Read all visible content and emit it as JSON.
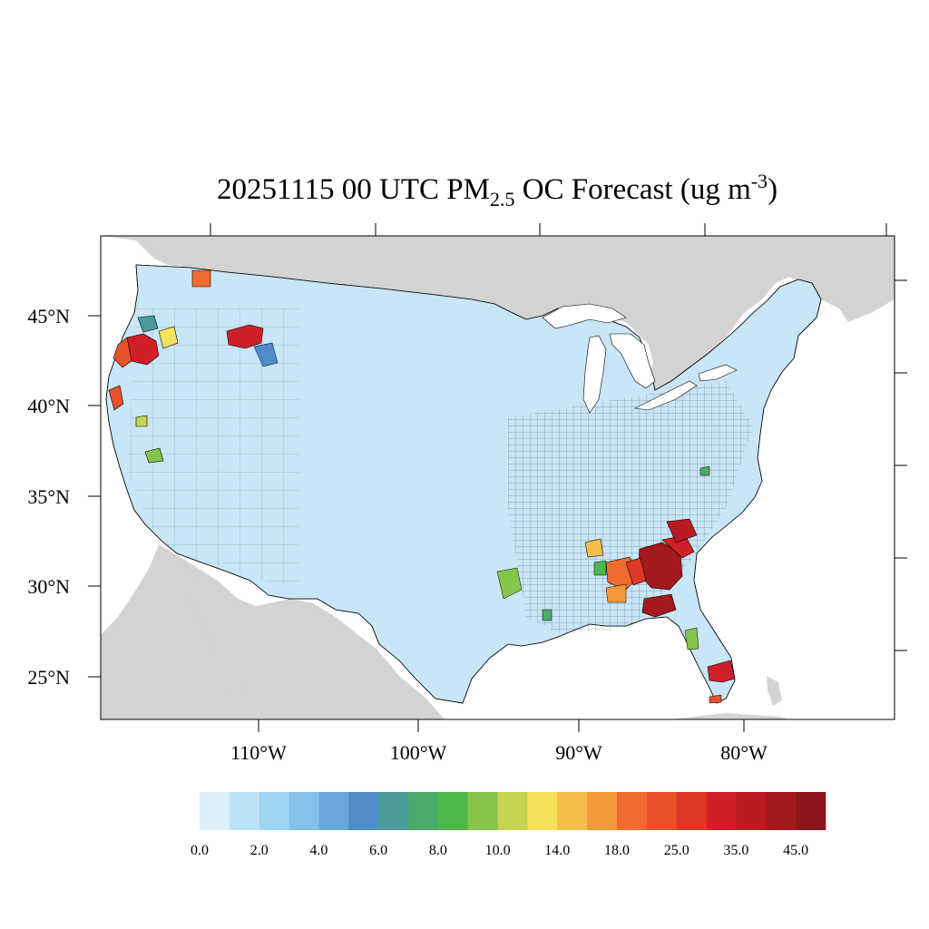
{
  "title": {
    "main": "20251115 00 UTC PM",
    "subscript": "2.5",
    "after_sub": " OC Forecast (ug m",
    "superscript": "-3",
    "close": ")"
  },
  "map": {
    "region": "Contiguous United States",
    "land_color": "#d3d3d3",
    "water_color": "#ffffff",
    "county_border_color": "#000000",
    "lat_labels": [
      "45°N",
      "40°N",
      "35°N",
      "30°N",
      "25°N"
    ],
    "lon_labels": [
      "110°W",
      "100°W",
      "90°W",
      "80°W"
    ],
    "hotspots": [
      {
        "area": "Oregon / northern California",
        "bin": "35.0"
      },
      {
        "area": "central Idaho / western Montana",
        "bin": "35.0"
      },
      {
        "area": "Georgia / South Carolina",
        "bin": "45.0"
      },
      {
        "area": "southern Alabama / Florida panhandle",
        "bin": "25.0"
      },
      {
        "area": "southern Florida",
        "bin": "35.0"
      },
      {
        "area": "eastern Texas / Louisiana",
        "bin": "8.0"
      }
    ]
  },
  "colorbar": {
    "colors": [
      "#dbf0fb",
      "#bde3f6",
      "#9dd5f3",
      "#84c0e8",
      "#6aa8dc",
      "#4f8cc9",
      "#4a9a9a",
      "#4caa6a",
      "#4cb84a",
      "#86c44c",
      "#c3d552",
      "#f5e15a",
      "#f6bd4a",
      "#f5983c",
      "#f06c2e",
      "#e8502a",
      "#de3726",
      "#d01f27",
      "#b81b22",
      "#a3191e",
      "#8b151b"
    ],
    "tick_labels": [
      "0.0",
      "2.0",
      "4.0",
      "6.0",
      "8.0",
      "10.0",
      "14.0",
      "18.0",
      "25.0",
      "35.0",
      "45.0"
    ]
  }
}
